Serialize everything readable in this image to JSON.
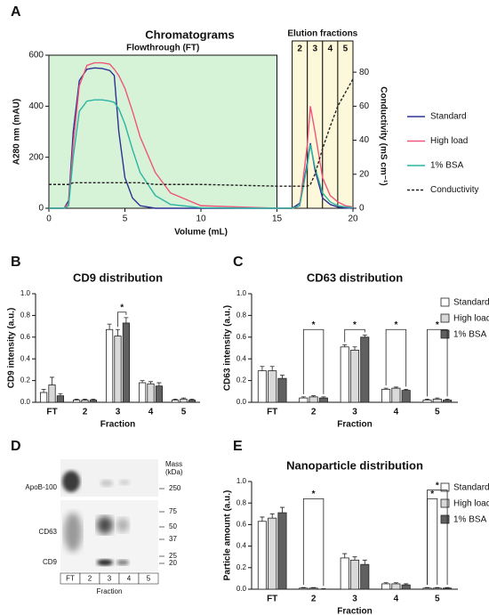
{
  "panel_labels": [
    "A",
    "B",
    "C",
    "D",
    "E"
  ],
  "chart_data": [
    {
      "type": "line",
      "title": "Chromatograms",
      "xlabel": "Volume (mL)",
      "ylabel": "A280 nm (mAU)",
      "y2label": "Conductivity (mS cm⁻¹)",
      "xlim": [
        0,
        20
      ],
      "xticks": [
        0,
        5,
        10,
        15,
        20
      ],
      "ylim": [
        0,
        600
      ],
      "yticks": [
        0,
        200,
        400,
        600
      ],
      "y2lim": [
        0,
        90
      ],
      "y2ticks": [
        0,
        20,
        40,
        60,
        80
      ],
      "flowthrough": {
        "label": "Flowthrough (FT)",
        "range": [
          0,
          15
        ],
        "color": "#d6f3d8"
      },
      "elution": {
        "label": "Elution fractions",
        "color": "#fdf8da",
        "fractions": [
          {
            "label": "2",
            "range": [
              16,
              17
            ]
          },
          {
            "label": "3",
            "range": [
              17,
              18
            ]
          },
          {
            "label": "4",
            "range": [
              18,
              19
            ]
          },
          {
            "label": "5",
            "range": [
              19,
              20
            ]
          }
        ]
      },
      "x": [
        0,
        1,
        1.3,
        1.6,
        2,
        2.5,
        3,
        3.5,
        4,
        4.3,
        4.6,
        5,
        5.5,
        6,
        7,
        8,
        10,
        15,
        16,
        16.5,
        17,
        17.2,
        17.5,
        18,
        18.5,
        19,
        19.5,
        20
      ],
      "series": [
        {
          "name": "Standard",
          "color": "#2e3192",
          "values": [
            0,
            0,
            30,
            300,
            500,
            545,
            550,
            548,
            540,
            520,
            300,
            120,
            40,
            10,
            0,
            0,
            0,
            0,
            0,
            20,
            180,
            255,
            150,
            40,
            15,
            5,
            2,
            0
          ]
        },
        {
          "name": "High load",
          "color": "#f0557b",
          "values": [
            0,
            0,
            20,
            250,
            480,
            560,
            570,
            570,
            565,
            545,
            520,
            470,
            380,
            280,
            140,
            60,
            10,
            0,
            0,
            10,
            250,
            400,
            300,
            120,
            50,
            25,
            10,
            5
          ]
        },
        {
          "name": "1% BSA",
          "color": "#2bb3a3",
          "values": [
            0,
            0,
            10,
            200,
            380,
            420,
            425,
            425,
            420,
            415,
            390,
            330,
            230,
            140,
            50,
            15,
            2,
            0,
            0,
            10,
            170,
            250,
            160,
            60,
            25,
            10,
            5,
            2
          ]
        },
        {
          "name": "Conductivity",
          "color": "#222222",
          "dashed": true,
          "axis": "y2",
          "values": [
            14,
            14,
            14,
            15,
            15,
            15,
            15,
            15,
            15,
            15,
            15,
            15,
            15,
            15,
            14,
            14,
            14,
            13,
            13,
            13,
            13,
            14,
            20,
            35,
            48,
            60,
            68,
            76
          ]
        }
      ],
      "legend": "right"
    },
    {
      "type": "bar",
      "title": "CD9 distribution",
      "xlabel": "Fraction",
      "ylabel": "CD9 intensity (a.u.)",
      "categories": [
        "FT",
        "2",
        "3",
        "4",
        "5"
      ],
      "ylim": [
        0,
        1
      ],
      "yticks": [
        {
          "value": 0,
          "label": "0.0"
        },
        {
          "value": 0.2,
          "label": "0.2"
        },
        {
          "value": 0.4,
          "label": "0.4"
        },
        {
          "value": 0.6,
          "label": "0.6"
        },
        {
          "value": 0.8,
          "label": "0.8"
        },
        {
          "value": 1,
          "label": "1.0"
        }
      ],
      "series": [
        {
          "name": "Standard",
          "color": "#ffffff",
          "values": [
            0.09,
            0.02,
            0.67,
            0.18,
            0.02
          ],
          "errors": [
            0.03,
            0.01,
            0.05,
            0.02,
            0.01
          ]
        },
        {
          "name": "High load",
          "color": "#d9d9d9",
          "values": [
            0.16,
            0.02,
            0.61,
            0.17,
            0.03
          ],
          "errors": [
            0.07,
            0.01,
            0.06,
            0.02,
            0.01
          ]
        },
        {
          "name": "1% BSA",
          "color": "#606060",
          "values": [
            0.06,
            0.02,
            0.73,
            0.15,
            0.02
          ],
          "errors": [
            0.02,
            0.01,
            0.05,
            0.03,
            0.01
          ]
        }
      ],
      "annotations": [
        {
          "label": "*",
          "category": "3",
          "between": [
            "High load",
            "1% BSA"
          ]
        }
      ],
      "legend": "none"
    },
    {
      "type": "bar",
      "title": "CD63 distribution",
      "xlabel": "Fraction",
      "ylabel": "CD63 intensity (a.u.)",
      "categories": [
        "FT",
        "2",
        "3",
        "4",
        "5"
      ],
      "ylim": [
        0,
        1
      ],
      "yticks": [
        {
          "value": 0,
          "label": "0.0"
        },
        {
          "value": 0.2,
          "label": "0.2"
        },
        {
          "value": 0.4,
          "label": "0.4"
        },
        {
          "value": 0.6,
          "label": "0.6"
        },
        {
          "value": 0.8,
          "label": "0.8"
        },
        {
          "value": 1,
          "label": "1.0"
        }
      ],
      "series": [
        {
          "name": "Standard",
          "color": "#ffffff",
          "values": [
            0.29,
            0.04,
            0.51,
            0.12,
            0.02
          ],
          "errors": [
            0.04,
            0.01,
            0.02,
            0.01,
            0.01
          ]
        },
        {
          "name": "High load",
          "color": "#d9d9d9",
          "values": [
            0.29,
            0.05,
            0.48,
            0.13,
            0.03
          ],
          "errors": [
            0.04,
            0.01,
            0.03,
            0.01,
            0.01
          ]
        },
        {
          "name": "1% BSA",
          "color": "#606060",
          "values": [
            0.22,
            0.04,
            0.6,
            0.11,
            0.02
          ],
          "errors": [
            0.03,
            0.01,
            0.02,
            0.01,
            0.01
          ]
        }
      ],
      "annotations": [
        {
          "label": "*",
          "category": "2",
          "between": [
            "Standard",
            "1% BSA"
          ]
        },
        {
          "label": "*",
          "category": "3",
          "between": [
            "Standard",
            "1% BSA"
          ]
        },
        {
          "label": "*",
          "category": "4",
          "between": [
            "Standard",
            "1% BSA"
          ]
        },
        {
          "label": "*",
          "category": "5",
          "between": [
            "Standard",
            "1% BSA"
          ]
        }
      ],
      "legend": "right"
    },
    {
      "type": "bar",
      "title": "Nanoparticle distribution",
      "xlabel": "Fraction",
      "ylabel": "Particle amount (a.u.)",
      "categories": [
        "FT",
        "2",
        "3",
        "4",
        "5"
      ],
      "ylim": [
        0,
        1
      ],
      "yticks": [
        {
          "value": 0,
          "label": "0.0"
        },
        {
          "value": 0.2,
          "label": "0.2"
        },
        {
          "value": 0.4,
          "label": "0.4"
        },
        {
          "value": 0.6,
          "label": "0.6"
        },
        {
          "value": 0.8,
          "label": "0.8"
        },
        {
          "value": 1,
          "label": "1.0"
        }
      ],
      "series": [
        {
          "name": "Standard",
          "color": "#ffffff",
          "values": [
            0.63,
            0.01,
            0.29,
            0.05,
            0.01
          ],
          "errors": [
            0.04,
            0.005,
            0.04,
            0.01,
            0.005
          ]
        },
        {
          "name": "High load",
          "color": "#d9d9d9",
          "values": [
            0.66,
            0.01,
            0.27,
            0.05,
            0.01
          ],
          "errors": [
            0.04,
            0.005,
            0.03,
            0.01,
            0.005
          ]
        },
        {
          "name": "1% BSA",
          "color": "#606060",
          "values": [
            0.71,
            0.0,
            0.23,
            0.04,
            0.01
          ],
          "errors": [
            0.05,
            0.005,
            0.04,
            0.01,
            0.005
          ]
        }
      ],
      "annotations": [
        {
          "label": "*",
          "category": "2",
          "between": [
            "Standard",
            "1% BSA"
          ]
        },
        {
          "label": "*",
          "category": "5",
          "between": [
            "Standard",
            "High load"
          ]
        },
        {
          "label": "*",
          "category": "5",
          "between": [
            "Standard",
            "1% BSA"
          ]
        }
      ],
      "legend": "right"
    }
  ],
  "blot": {
    "bands": [
      "ApoB-100",
      "CD63",
      "CD9"
    ],
    "mass_header": [
      "Mass",
      "(kDa)"
    ],
    "markers": [
      250,
      75,
      50,
      37,
      25,
      20
    ],
    "lane_labels": [
      "FT",
      "2",
      "3",
      "4",
      "5"
    ],
    "xlabel": "Fraction"
  }
}
